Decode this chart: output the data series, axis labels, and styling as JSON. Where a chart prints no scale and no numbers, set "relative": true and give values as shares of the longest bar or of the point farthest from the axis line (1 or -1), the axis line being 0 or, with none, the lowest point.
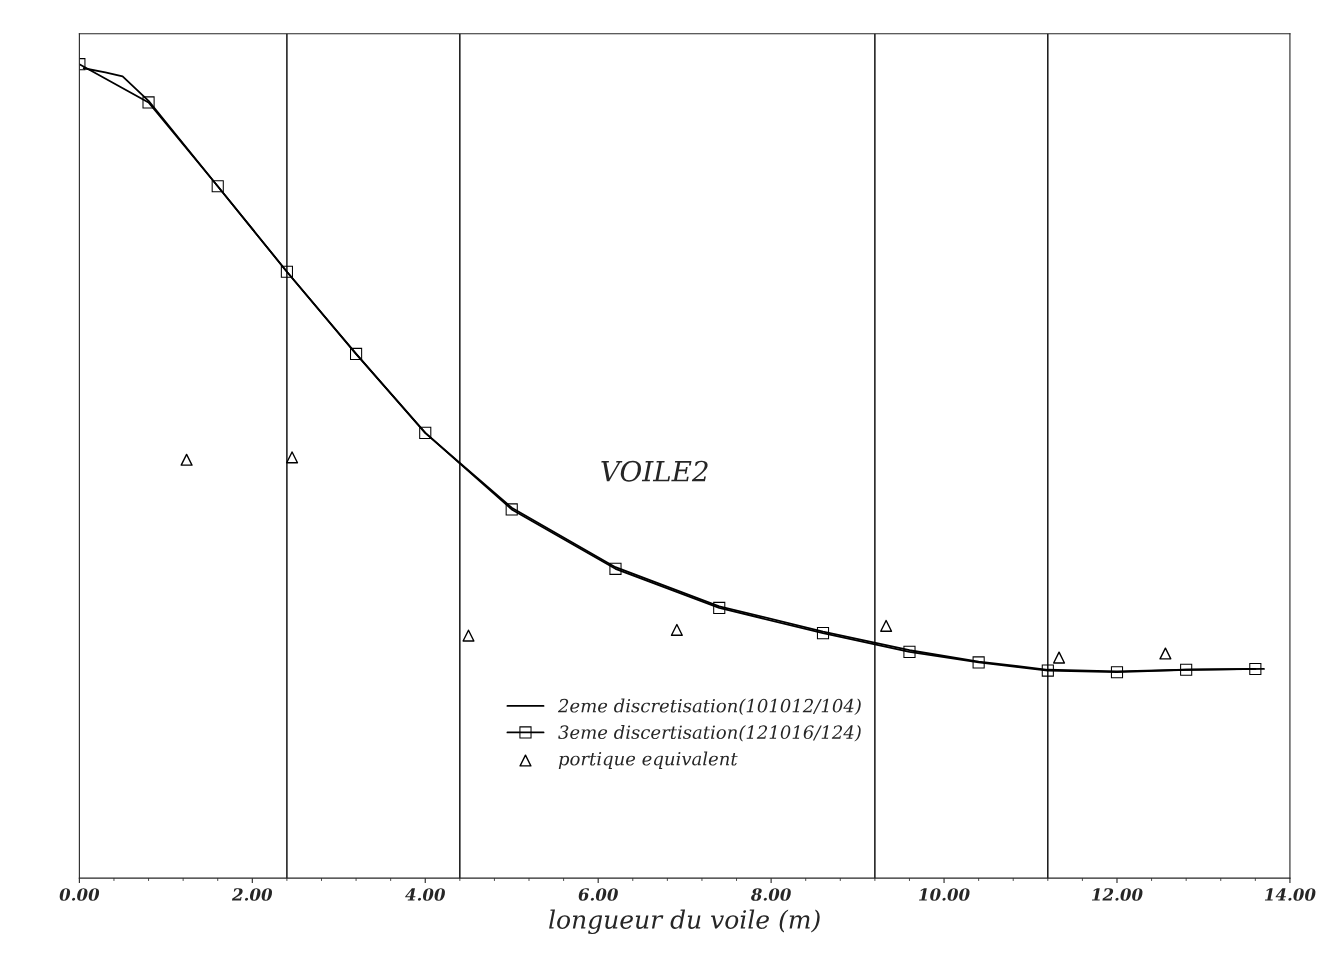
{
  "chart_data": {
    "type": "line",
    "xlabel": "longueur du voile (m)",
    "relative": true,
    "xlim": [
      0,
      14
    ],
    "xticks": [
      {
        "value": 0,
        "label": "0.00"
      },
      {
        "value": 2,
        "label": "2.00"
      },
      {
        "value": 4,
        "label": "4.00"
      },
      {
        "value": 6,
        "label": "6.00"
      },
      {
        "value": 8,
        "label": "8.00"
      },
      {
        "value": 10,
        "label": "10.00"
      },
      {
        "value": 12,
        "label": "12.00"
      },
      {
        "value": 14,
        "label": "14.00"
      }
    ],
    "grid": false,
    "legend": "bottom",
    "annotations": [
      "VOILE2"
    ],
    "ref_lines": [
      {
        "axis": "x",
        "value": 2.4,
        "color": "#000000"
      },
      {
        "axis": "x",
        "value": 4.4,
        "color": "#000000"
      },
      {
        "axis": "x",
        "value": 9.2,
        "color": "#000000"
      },
      {
        "axis": "x",
        "value": 11.2,
        "color": "#000000"
      }
    ],
    "series": [
      {
        "name": "2eme discretisation(101012/104)",
        "marker": "none",
        "color": "#000000",
        "x": [
          0.05,
          0.3,
          0.5,
          0.8,
          1.6,
          2.4,
          3.2,
          4.0,
          4.4,
          5.0,
          6.2,
          7.4,
          8.6,
          9.6,
          10.4,
          11.2,
          12.0,
          12.8,
          13.7
        ],
        "values": [
          0.995,
          0.99,
          0.985,
          0.955,
          0.85,
          0.745,
          0.644,
          0.547,
          0.51,
          0.455,
          0.382,
          0.334,
          0.303,
          0.28,
          0.266,
          0.256,
          0.254,
          0.256,
          0.257
        ]
      },
      {
        "name": "3eme discertisation(121016/124)",
        "marker": "square",
        "color": "#000000",
        "x": [
          0,
          0.8,
          1.6,
          2.4,
          3.2,
          4.0,
          5.0,
          6.2,
          7.4,
          8.6,
          9.6,
          10.4,
          11.2,
          12.0,
          12.8,
          13.6
        ],
        "values": [
          1.0,
          0.953,
          0.85,
          0.745,
          0.644,
          0.547,
          0.453,
          0.38,
          0.332,
          0.301,
          0.278,
          0.265,
          0.255,
          0.253,
          0.256,
          0.257
        ]
      },
      {
        "name": "portique equivalent",
        "type": "scatter",
        "marker": "triangle",
        "color": "#000000",
        "x": [
          1.24,
          2.46,
          4.5,
          6.91,
          9.33,
          11.33,
          12.56
        ],
        "values": [
          0.514,
          0.517,
          0.298,
          0.305,
          0.31,
          0.271,
          0.276
        ]
      }
    ]
  }
}
